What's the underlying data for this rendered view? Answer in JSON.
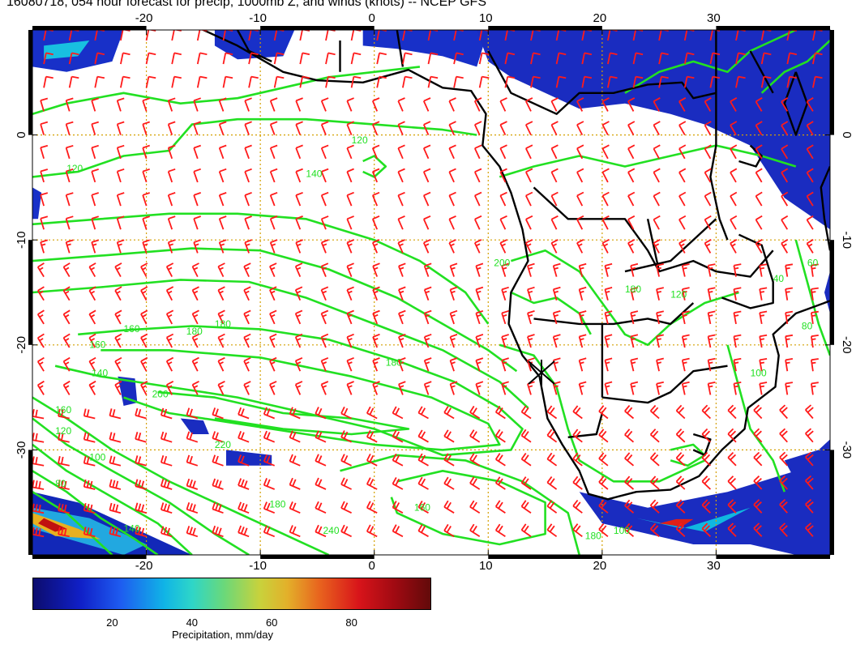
{
  "title": "16080718, 054 hour forecast for precip, 1000mb Z, and winds (knots) -- NCEP GFS",
  "map": {
    "lon_ticks": [
      "-20",
      "-10",
      "0",
      "10",
      "20",
      "30"
    ],
    "lat_ticks": [
      "0",
      "-10",
      "-20",
      "-30"
    ],
    "lon_range": [
      -30,
      40
    ],
    "lat_range": [
      -40,
      10
    ],
    "contour_labels": [
      "120",
      "140",
      "160",
      "180",
      "180",
      "160",
      "140",
      "180",
      "200",
      "220",
      "240",
      "180",
      "160",
      "120",
      "100",
      "80",
      "140",
      "160",
      "180",
      "100",
      "120",
      "200",
      "180",
      "120",
      "40",
      "60",
      "80",
      "100"
    ],
    "colors": {
      "contour": "#22e022",
      "barb": "#ff1a1a",
      "coast": "#000000",
      "grid": "#d4a000"
    }
  },
  "colorbar": {
    "ticks": [
      "20",
      "40",
      "60",
      "80"
    ],
    "range": [
      0,
      100
    ],
    "label": "Precipitation, mm/day"
  }
}
